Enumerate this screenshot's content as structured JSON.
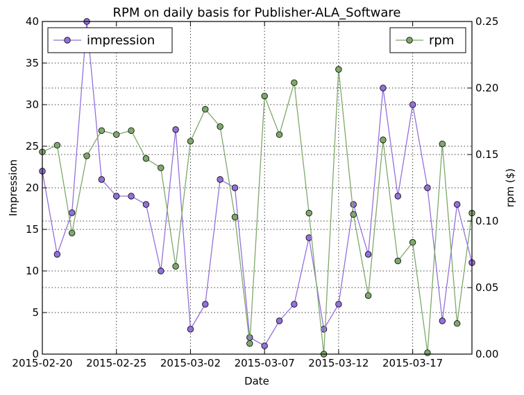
{
  "chart_data": {
    "type": "line",
    "title": "RPM on daily basis for Publisher-ALA_Software",
    "xlabel": "Date",
    "ylabel_left": "Impression",
    "ylabel_right": "rpm ($)",
    "x_start": "2015-02-20",
    "x_end": "2015-03-21",
    "x_ticks": [
      "2015-02-20",
      "2015-02-25",
      "2015-03-02",
      "2015-03-07",
      "2015-03-12",
      "2015-03-17"
    ],
    "ylim_left": [
      0,
      40
    ],
    "yticks_left": [
      "0",
      "5",
      "10",
      "15",
      "20",
      "25",
      "30",
      "35",
      "40"
    ],
    "ylim_right": [
      0,
      0.25
    ],
    "yticks_right": [
      "0.00",
      "0.05",
      "0.10",
      "0.15",
      "0.20",
      "0.25"
    ],
    "grid": true,
    "dates": [
      "2015-02-20",
      "2015-02-21",
      "2015-02-22",
      "2015-02-23",
      "2015-02-24",
      "2015-02-25",
      "2015-02-26",
      "2015-02-27",
      "2015-02-28",
      "2015-03-01",
      "2015-03-02",
      "2015-03-03",
      "2015-03-04",
      "2015-03-05",
      "2015-03-06",
      "2015-03-07",
      "2015-03-08",
      "2015-03-09",
      "2015-03-10",
      "2015-03-11",
      "2015-03-12",
      "2015-03-13",
      "2015-03-14",
      "2015-03-15",
      "2015-03-16",
      "2015-03-17",
      "2015-03-18",
      "2015-03-19",
      "2015-03-20",
      "2015-03-21"
    ],
    "series": [
      {
        "name": "impression",
        "axis": "left",
        "color": "#9370DB",
        "legend": "top-left",
        "values": [
          22,
          12,
          17,
          40,
          21,
          19,
          19,
          18,
          10,
          27,
          3,
          6,
          21,
          20,
          2,
          1,
          4,
          6,
          14,
          3,
          6,
          18,
          12,
          32,
          19,
          30,
          20,
          4,
          18,
          11
        ]
      },
      {
        "name": "rpm",
        "axis": "right",
        "color": "#7EA86A",
        "legend": "top-right",
        "values": [
          0.152,
          0.157,
          0.091,
          0.149,
          0.168,
          0.165,
          0.168,
          0.147,
          0.14,
          0.066,
          0.16,
          0.184,
          0.171,
          0.103,
          0.008,
          0.194,
          0.165,
          0.204,
          0.106,
          0.0,
          0.214,
          0.105,
          0.044,
          0.161,
          0.07,
          0.084,
          0.001,
          0.158,
          0.023,
          0.106
        ]
      }
    ]
  }
}
